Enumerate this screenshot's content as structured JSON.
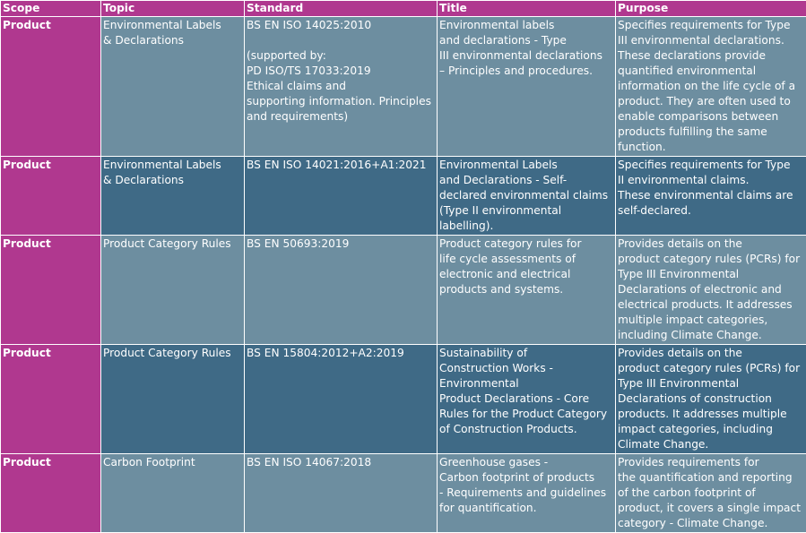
{
  "headers": [
    "Scope",
    "Topic",
    "Standard",
    "Title",
    "Purpose"
  ],
  "rows": [
    {
      "scope": "Product",
      "topic": "Environmental Labels\n& Declarations",
      "standard": "BS EN ISO 14025:2010\n\n(supported by:\nPD ISO/TS 17033:2019\nEthical claims and\nsupporting information. Principles\nand requirements)",
      "title": "Environmental labels\nand declarations - Type\nIII environmental declarations\n– Principles and procedures.",
      "purpose": "Specifies requirements for Type\nIII environmental declarations.\nThese declarations provide\nquantified environmental\ninformation on the life cycle of a\nproduct. They are often used to\nenable comparisons between\nproducts fulfilling the same\nfunction."
    },
    {
      "scope": "Product",
      "topic": "Environmental Labels\n& Declarations",
      "standard": "BS EN ISO 14021:2016+A1:2021",
      "title": "Environmental Labels\nand Declarations - Self-\ndeclared environmental claims\n(Type II environmental\nlabelling).",
      "purpose": "Specifies requirements for Type\nII environmental claims.\nThese environmental claims are\nself-declared."
    },
    {
      "scope": "Product",
      "topic": "Product Category Rules",
      "standard": "BS EN 50693:2019",
      "title": "Product category rules for\nlife cycle assessments of\nelectronic and electrical\nproducts and systems.",
      "purpose": "Provides details on the\nproduct category rules (PCRs) for\nType III Environmental\nDeclarations of electronic and\nelectrical products. It addresses\nmultiple impact categories,\nincluding Climate Change."
    },
    {
      "scope": "Product",
      "topic": "Product Category Rules",
      "standard": "BS EN 15804:2012+A2:2019",
      "title": "Sustainability of\nConstruction Works -\nEnvironmental\nProduct Declarations - Core\nRules for the Product Category\nof Construction Products.",
      "purpose": "Provides details on the\nproduct category rules (PCRs) for\nType III Environmental\nDeclarations of construction\nproducts. It addresses multiple\nimpact categories, including\nClimate Change."
    },
    {
      "scope": "Product",
      "topic": "Carbon Footprint",
      "standard": "BS EN ISO 14067:2018",
      "title": "Greenhouse gases -\nCarbon footprint of products\n- Requirements and guidelines\nfor quantification.",
      "purpose": "Provides requirements for\nthe quantification and reporting\nof the carbon footprint of\nproduct, it covers a single impact\ncategory - Climate Change."
    }
  ]
}
